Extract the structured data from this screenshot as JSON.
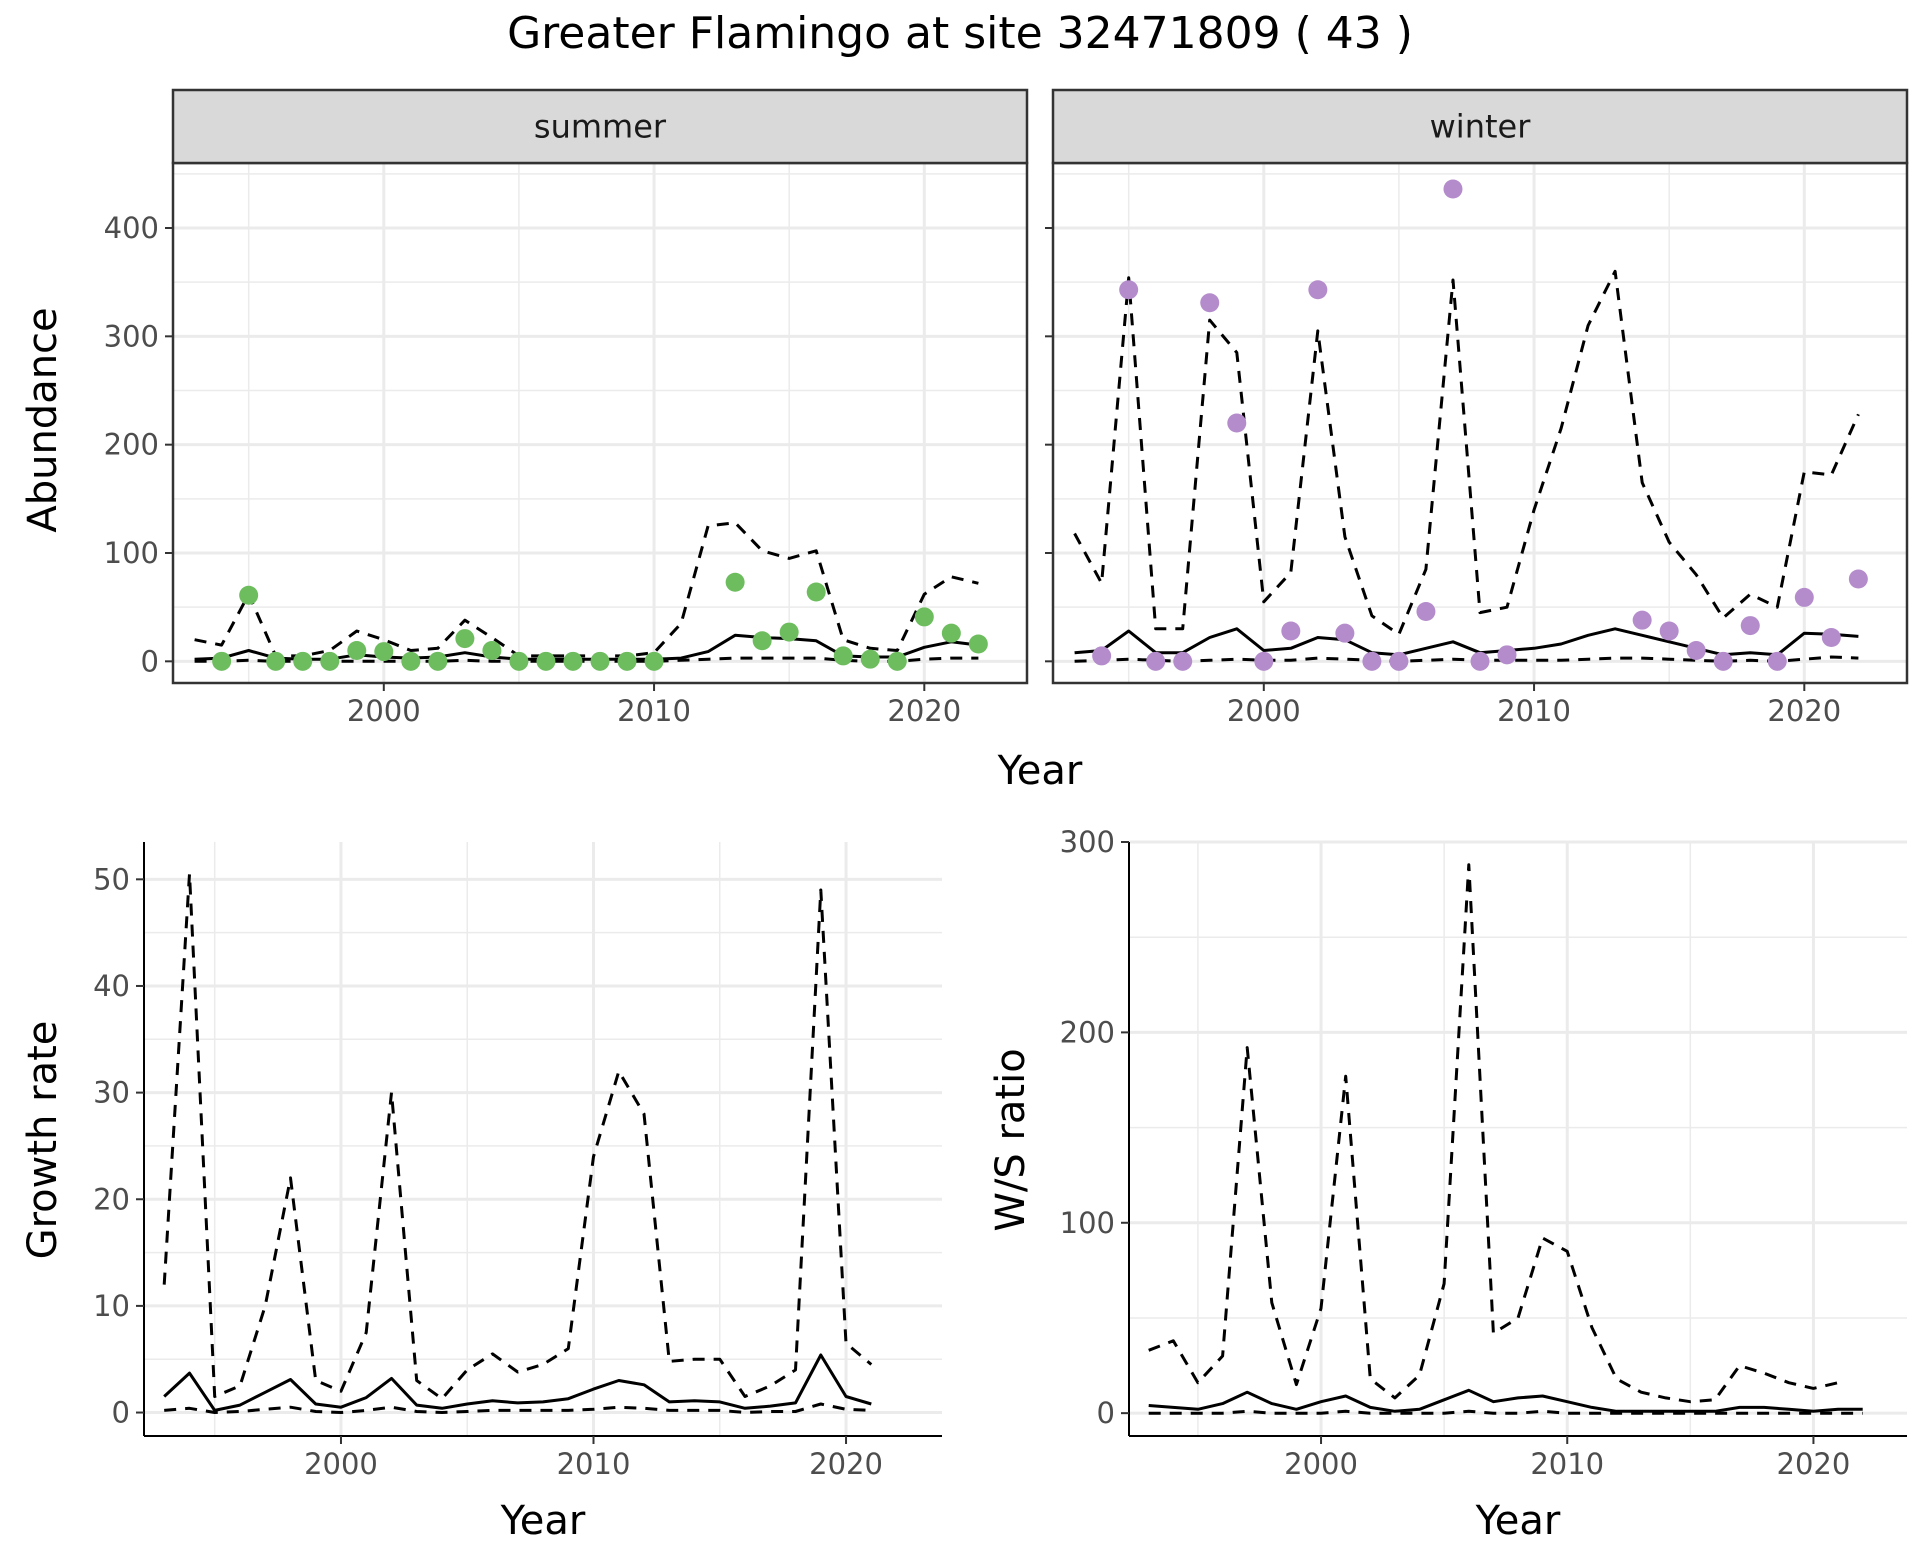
{
  "figure": {
    "title": "Greater Flamingo at site 32471809 ( 43 )"
  },
  "colors": {
    "summer_points": "#6dbd5f",
    "winter_points": "#b48ccb",
    "lines": "#000000",
    "grid": "#ebebeb",
    "strip_background": "#d9d9d9",
    "panel_border": "#333333"
  },
  "chart_data": [
    {
      "type": "scatter",
      "facet": "summer",
      "strip_label": "summer",
      "xlabel": "Year",
      "ylabel": "Abundance",
      "xlim": [
        1992.2,
        2023.8
      ],
      "ylim": [
        -20,
        460
      ],
      "x_ticks": [
        2000,
        2010,
        2020
      ],
      "y_ticks": [
        0,
        100,
        200,
        300,
        400
      ],
      "grid": true,
      "points": {
        "x": [
          1994,
          1995,
          1996,
          1997,
          1998,
          1999,
          2000,
          2001,
          2002,
          2003,
          2004,
          2005,
          2006,
          2007,
          2008,
          2009,
          2010,
          2013,
          2014,
          2015,
          2016,
          2017,
          2018,
          2019,
          2020,
          2021,
          2022
        ],
        "y": [
          0,
          61,
          0,
          0,
          0,
          10,
          9,
          0,
          0,
          21,
          10,
          0,
          0,
          0,
          0,
          0,
          0,
          73,
          19,
          27,
          64,
          5,
          2,
          0,
          41,
          26,
          16
        ]
      },
      "lines": [
        {
          "style": "solid",
          "x": [
            1993,
            1994,
            1995,
            1996,
            1997,
            1998,
            1999,
            2000,
            2001,
            2002,
            2003,
            2004,
            2005,
            2006,
            2007,
            2008,
            2009,
            2010,
            2011,
            2012,
            2013,
            2014,
            2015,
            2016,
            2017,
            2018,
            2019,
            2020,
            2021,
            2022
          ],
          "y": [
            2,
            3,
            10,
            3,
            2,
            2,
            6,
            4,
            3,
            4,
            8,
            4,
            2,
            2,
            2,
            2,
            2,
            2,
            3,
            9,
            24,
            22,
            21,
            19,
            5,
            4,
            4,
            13,
            18,
            15
          ]
        },
        {
          "style": "dashed",
          "x": [
            1993,
            1994,
            1995,
            1996,
            1997,
            1998,
            1999,
            2000,
            2001,
            2002,
            2003,
            2004,
            2005,
            2006,
            2007,
            2008,
            2009,
            2010,
            2011,
            2012,
            2013,
            2014,
            2015,
            2016,
            2017,
            2018,
            2019,
            2020,
            2021,
            2022
          ],
          "y": [
            20,
            15,
            62,
            5,
            5,
            10,
            28,
            20,
            10,
            12,
            38,
            22,
            5,
            5,
            5,
            5,
            5,
            8,
            35,
            125,
            128,
            102,
            95,
            102,
            20,
            12,
            10,
            62,
            78,
            72
          ]
        },
        {
          "style": "dashed",
          "x": [
            1993,
            1994,
            1995,
            1996,
            1997,
            1998,
            1999,
            2000,
            2001,
            2002,
            2003,
            2004,
            2005,
            2006,
            2007,
            2008,
            2009,
            2010,
            2011,
            2012,
            2013,
            2014,
            2015,
            2016,
            2017,
            2018,
            2019,
            2020,
            2021,
            2022
          ],
          "y": [
            0,
            0,
            1,
            0,
            0,
            0,
            0,
            0,
            0,
            0,
            1,
            0,
            0,
            0,
            0,
            0,
            0,
            0,
            1,
            2,
            3,
            3,
            3,
            3,
            1,
            0,
            0,
            2,
            3,
            3
          ]
        }
      ]
    },
    {
      "type": "scatter",
      "facet": "winter",
      "strip_label": "winter",
      "xlabel": "Year",
      "ylabel": "Abundance",
      "xlim": [
        1992.2,
        2023.8
      ],
      "ylim": [
        -20,
        460
      ],
      "x_ticks": [
        2000,
        2010,
        2020
      ],
      "y_ticks": [
        0,
        100,
        200,
        300,
        400
      ],
      "grid": true,
      "points": {
        "x": [
          1994,
          1995,
          1996,
          1997,
          1998,
          1999,
          2000,
          2001,
          2002,
          2003,
          2004,
          2005,
          2006,
          2007,
          2008,
          2009,
          2014,
          2015,
          2016,
          2017,
          2018,
          2019,
          2020,
          2021,
          2022
        ],
        "y": [
          5,
          343,
          0,
          0,
          331,
          220,
          0,
          28,
          343,
          26,
          0,
          0,
          46,
          436,
          0,
          6,
          38,
          28,
          10,
          0,
          33,
          0,
          59,
          22,
          76
        ]
      },
      "lines": [
        {
          "style": "solid",
          "x": [
            1993,
            1994,
            1995,
            1996,
            1997,
            1998,
            1999,
            2000,
            2001,
            2002,
            2003,
            2004,
            2005,
            2006,
            2007,
            2008,
            2009,
            2010,
            2011,
            2012,
            2013,
            2014,
            2015,
            2016,
            2017,
            2018,
            2019,
            2020,
            2021,
            2022
          ],
          "y": [
            8,
            10,
            28,
            8,
            8,
            22,
            30,
            10,
            12,
            22,
            20,
            8,
            6,
            12,
            18,
            8,
            10,
            12,
            16,
            24,
            30,
            24,
            18,
            12,
            6,
            8,
            6,
            26,
            25,
            23
          ]
        },
        {
          "style": "dashed",
          "x": [
            1993,
            1994,
            1995,
            1996,
            1997,
            1998,
            1999,
            2000,
            2001,
            2002,
            2003,
            2004,
            2005,
            2006,
            2007,
            2008,
            2009,
            2010,
            2011,
            2012,
            2013,
            2014,
            2015,
            2016,
            2017,
            2018,
            2019,
            2020,
            2021,
            2022
          ],
          "y": [
            118,
            72,
            354,
            30,
            30,
            315,
            285,
            55,
            82,
            305,
            115,
            42,
            25,
            85,
            352,
            45,
            50,
            140,
            215,
            310,
            360,
            165,
            110,
            80,
            40,
            62,
            50,
            175,
            172,
            228
          ]
        },
        {
          "style": "dashed",
          "x": [
            1993,
            1994,
            1995,
            1996,
            1997,
            1998,
            1999,
            2000,
            2001,
            2002,
            2003,
            2004,
            2005,
            2006,
            2007,
            2008,
            2009,
            2010,
            2011,
            2012,
            2013,
            2014,
            2015,
            2016,
            2017,
            2018,
            2019,
            2020,
            2021,
            2022
          ],
          "y": [
            0,
            1,
            2,
            1,
            0,
            1,
            2,
            1,
            1,
            3,
            2,
            1,
            0,
            1,
            2,
            1,
            1,
            1,
            1,
            2,
            3,
            3,
            2,
            1,
            0,
            1,
            0,
            2,
            4,
            3
          ]
        }
      ]
    },
    {
      "type": "line",
      "xlabel": "Year",
      "ylabel": "Growth rate",
      "xlim": [
        1992.2,
        2023.8
      ],
      "ylim": [
        -2.2,
        53.5
      ],
      "x_ticks": [
        2000,
        2010,
        2020
      ],
      "y_ticks": [
        0,
        10,
        20,
        30,
        40,
        50
      ],
      "grid": true,
      "lines": [
        {
          "style": "solid",
          "x": [
            1993,
            1994,
            1995,
            1996,
            1997,
            1998,
            1999,
            2000,
            2001,
            2002,
            2003,
            2004,
            2005,
            2006,
            2007,
            2008,
            2009,
            2010,
            2011,
            2012,
            2013,
            2014,
            2015,
            2016,
            2017,
            2018,
            2019,
            2020,
            2021
          ],
          "y": [
            1.5,
            3.7,
            0.2,
            0.7,
            1.9,
            3.1,
            0.8,
            0.5,
            1.4,
            3.2,
            0.7,
            0.4,
            0.8,
            1.1,
            0.9,
            1,
            1.3,
            2.2,
            3,
            2.6,
            1,
            1.1,
            1,
            0.4,
            0.6,
            0.9,
            5.4,
            1.5,
            0.8
          ]
        },
        {
          "style": "dashed",
          "x": [
            1993,
            1994,
            1995,
            1996,
            1997,
            1998,
            1999,
            2000,
            2001,
            2002,
            2003,
            2004,
            2005,
            2006,
            2007,
            2008,
            2009,
            2010,
            2011,
            2012,
            2013,
            2014,
            2015,
            2016,
            2017,
            2018,
            2019,
            2020,
            2021
          ],
          "y": [
            12,
            50.5,
            1.5,
            2.5,
            10,
            22,
            3,
            2,
            7.5,
            30,
            3,
            1.3,
            4,
            5.5,
            3.8,
            4.5,
            6,
            24,
            32,
            28,
            4.8,
            5,
            5,
            1.5,
            2.5,
            4,
            49,
            6.5,
            4.5
          ]
        },
        {
          "style": "dashed",
          "x": [
            1993,
            1994,
            1995,
            1996,
            1997,
            1998,
            1999,
            2000,
            2001,
            2002,
            2003,
            2004,
            2005,
            2006,
            2007,
            2008,
            2009,
            2010,
            2011,
            2012,
            2013,
            2014,
            2015,
            2016,
            2017,
            2018,
            2019,
            2020,
            2021
          ],
          "y": [
            0.2,
            0.4,
            0,
            0.1,
            0.3,
            0.5,
            0.1,
            0,
            0.2,
            0.5,
            0.1,
            0,
            0.1,
            0.2,
            0.2,
            0.2,
            0.2,
            0.3,
            0.5,
            0.4,
            0.2,
            0.2,
            0.2,
            0,
            0.1,
            0.1,
            0.8,
            0.3,
            0.2
          ]
        }
      ]
    },
    {
      "type": "line",
      "xlabel": "Year",
      "ylabel": "W/S ratio",
      "xlim": [
        1992.2,
        2023.8
      ],
      "ylim": [
        -12,
        300
      ],
      "x_ticks": [
        2000,
        2010,
        2020
      ],
      "y_ticks": [
        0,
        100,
        200,
        300
      ],
      "grid": true,
      "lines": [
        {
          "style": "solid",
          "x": [
            1993,
            1994,
            1995,
            1996,
            1997,
            1998,
            1999,
            2000,
            2001,
            2002,
            2003,
            2004,
            2005,
            2006,
            2007,
            2008,
            2009,
            2010,
            2011,
            2012,
            2013,
            2014,
            2015,
            2016,
            2017,
            2018,
            2019,
            2020,
            2021,
            2022
          ],
          "y": [
            4,
            3,
            2,
            5,
            11,
            5,
            2,
            6,
            9,
            3,
            1,
            2,
            7,
            12,
            6,
            8,
            9,
            6,
            3,
            1,
            1,
            1,
            1,
            1,
            3,
            3,
            2,
            1,
            2,
            2
          ]
        },
        {
          "style": "dashed",
          "x": [
            1993,
            1994,
            1995,
            1996,
            1997,
            1998,
            1999,
            2000,
            2001,
            2002,
            2003,
            2004,
            2005,
            2006,
            2007,
            2008,
            2009,
            2010,
            2011,
            2012,
            2013,
            2014,
            2015,
            2016,
            2017,
            2018,
            2019,
            2020,
            2021,
            2022
          ],
          "y": [
            33,
            38,
            16,
            30,
            192,
            58,
            15,
            55,
            177,
            18,
            8,
            20,
            68,
            288,
            42,
            50,
            92,
            85,
            45,
            18,
            11,
            8,
            6,
            7,
            25,
            21,
            16,
            13,
            16,
            null
          ]
        },
        {
          "style": "dashed",
          "x": [
            1993,
            1994,
            1995,
            1996,
            1997,
            1998,
            1999,
            2000,
            2001,
            2002,
            2003,
            2004,
            2005,
            2006,
            2007,
            2008,
            2009,
            2010,
            2011,
            2012,
            2013,
            2014,
            2015,
            2016,
            2017,
            2018,
            2019,
            2020,
            2021,
            2022
          ],
          "y": [
            0,
            0,
            0,
            0,
            1,
            0,
            0,
            0,
            1,
            0,
            0,
            0,
            0,
            1,
            0,
            0,
            1,
            0,
            0,
            0,
            0,
            0,
            0,
            0,
            0,
            0,
            0,
            0,
            0,
            0
          ]
        }
      ]
    }
  ]
}
